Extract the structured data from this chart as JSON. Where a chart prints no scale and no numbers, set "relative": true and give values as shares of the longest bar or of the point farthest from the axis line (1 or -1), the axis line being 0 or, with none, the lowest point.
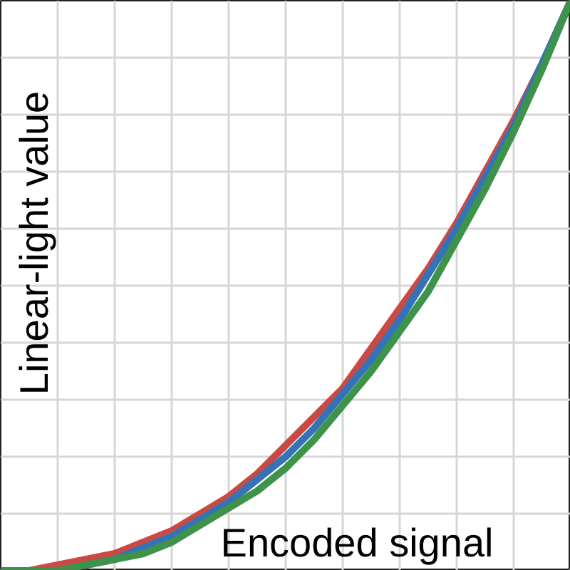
{
  "chart_data": {
    "type": "line",
    "relative": true,
    "xlabel": "Encoded signal",
    "ylabel": "Linear-light value",
    "grid": true,
    "line_style": "solid",
    "categories": [
      null,
      null,
      null,
      null,
      null,
      null,
      null,
      null,
      null,
      null,
      null,
      null,
      null,
      null,
      null,
      null,
      null,
      null,
      null,
      null,
      null
    ],
    "series": [
      {
        "color": "#c94a44",
        "values": [
          0,
          0,
          0.01,
          0.02,
          0.03,
          0.05,
          0.07,
          0.1,
          0.13,
          0.17,
          0.22,
          0.27,
          0.32,
          0.39,
          0.46,
          0.53,
          0.61,
          0.7,
          0.79,
          0.89,
          1
        ]
      },
      {
        "color": "#3573b9",
        "values": [
          null,
          null,
          null,
          0.01,
          0.02,
          0.04,
          0.06,
          0.09,
          0.12,
          0.16,
          0.2,
          0.25,
          0.31,
          0.37,
          0.44,
          0.52,
          0.6,
          0.69,
          0.78,
          0.89,
          1
        ]
      },
      {
        "color": "#3d934a",
        "values": [
          0,
          0,
          0,
          0.01,
          0.02,
          0.03,
          0.05,
          0.08,
          0.11,
          0.14,
          0.18,
          0.23,
          0.29,
          0.35,
          0.42,
          0.49,
          0.58,
          0.67,
          0.77,
          0.88,
          1
        ]
      }
    ]
  }
}
